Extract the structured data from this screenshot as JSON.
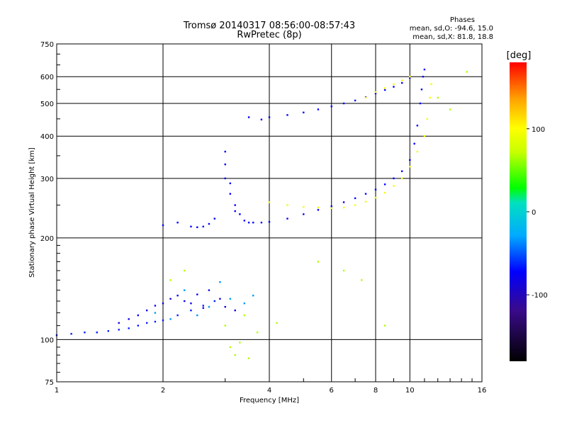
{
  "title_line1": "Tromsø 20140317 08:56:00-08:57:43",
  "title_line2": "RwPretec (8p)",
  "stats": {
    "heading": "Phases",
    "line_o": "mean, sd,O: -94.6, 15.0",
    "line_x": "mean, sd,X:  81.8, 18.8"
  },
  "colorbar": {
    "label": "[deg]",
    "range": [
      -180,
      180
    ],
    "ticks": [
      "100",
      "0",
      "-100"
    ],
    "tick_values": [
      100,
      0,
      -100
    ]
  },
  "chart_data": {
    "type": "scatter",
    "title": "Tromsø 20140317 08:56:00-08:57:43",
    "subtitle": "RwPretec (8p)",
    "xlabel": "Frequency [MHz]",
    "ylabel": "Stationary phase Virtual Height [km]",
    "x_scale": "log",
    "y_scale": "log",
    "xlim": [
      1,
      16
    ],
    "ylim": [
      75,
      750
    ],
    "xticks": [
      1,
      2,
      4,
      6,
      8,
      10,
      16
    ],
    "xtick_labels": [
      "1",
      "2",
      "4",
      "6",
      "8",
      "10",
      "16"
    ],
    "yticks": [
      75,
      100,
      200,
      300,
      400,
      500,
      600,
      750
    ],
    "ytick_labels": [
      "75",
      "100",
      "200",
      "300",
      "400",
      "500",
      "600",
      "750"
    ],
    "grid": true,
    "color_variable": "Phase [deg]",
    "series": [
      {
        "phase": -95,
        "points": [
          [
            1.0,
            103
          ],
          [
            1.1,
            104
          ],
          [
            1.2,
            105
          ],
          [
            1.3,
            105
          ],
          [
            1.4,
            106
          ],
          [
            1.5,
            107
          ],
          [
            1.6,
            108
          ],
          [
            1.7,
            110
          ],
          [
            1.8,
            112
          ],
          [
            1.9,
            113
          ],
          [
            2.0,
            114
          ],
          [
            2.2,
            118
          ],
          [
            2.4,
            122
          ],
          [
            2.6,
            126
          ],
          [
            2.8,
            130
          ]
        ]
      },
      {
        "phase": -105,
        "points": [
          [
            1.5,
            112
          ],
          [
            1.6,
            115
          ],
          [
            1.7,
            118
          ],
          [
            1.8,
            122
          ],
          [
            1.9,
            126
          ],
          [
            2.0,
            128
          ],
          [
            2.1,
            132
          ],
          [
            2.2,
            135
          ],
          [
            2.3,
            130
          ],
          [
            2.4,
            128
          ],
          [
            2.5,
            136
          ],
          [
            2.6,
            124
          ],
          [
            2.7,
            140
          ],
          [
            2.9,
            132
          ],
          [
            3.0,
            125
          ],
          [
            3.2,
            122
          ]
        ]
      },
      {
        "phase": -60,
        "points": [
          [
            1.9,
            120
          ],
          [
            2.1,
            115
          ],
          [
            2.3,
            140
          ],
          [
            2.5,
            118
          ],
          [
            2.7,
            125
          ],
          [
            2.9,
            148
          ],
          [
            3.1,
            132
          ],
          [
            3.4,
            128
          ],
          [
            3.6,
            135
          ]
        ]
      },
      {
        "phase": -100,
        "points": [
          [
            2.0,
            218
          ],
          [
            2.2,
            222
          ],
          [
            2.4,
            216
          ],
          [
            2.5,
            215
          ],
          [
            2.6,
            216
          ],
          [
            2.7,
            220
          ],
          [
            2.8,
            228
          ]
        ]
      },
      {
        "phase": -100,
        "points": [
          [
            3.0,
            300
          ],
          [
            3.0,
            330
          ],
          [
            3.0,
            360
          ],
          [
            3.1,
            290
          ],
          [
            3.1,
            270
          ],
          [
            3.2,
            250
          ],
          [
            3.2,
            240
          ],
          [
            3.3,
            235
          ],
          [
            3.4,
            225
          ],
          [
            3.5,
            222
          ],
          [
            3.6,
            222
          ],
          [
            3.8,
            222
          ],
          [
            4.0,
            223
          ],
          [
            4.5,
            228
          ],
          [
            5.0,
            235
          ],
          [
            5.5,
            242
          ],
          [
            6.0,
            248
          ],
          [
            6.5,
            255
          ],
          [
            7.0,
            262
          ],
          [
            7.5,
            270
          ],
          [
            8.0,
            278
          ],
          [
            8.5,
            288
          ],
          [
            9.0,
            300
          ],
          [
            9.5,
            315
          ],
          [
            10.0,
            340
          ],
          [
            10.3,
            380
          ],
          [
            10.5,
            430
          ],
          [
            10.7,
            500
          ],
          [
            10.8,
            550
          ],
          [
            10.9,
            600
          ],
          [
            11.0,
            630
          ]
        ]
      },
      {
        "phase": 85,
        "points": [
          [
            4.0,
            255
          ],
          [
            4.5,
            250
          ],
          [
            5.0,
            247
          ],
          [
            5.5,
            246
          ],
          [
            6.0,
            245
          ],
          [
            6.5,
            246
          ],
          [
            7.0,
            250
          ],
          [
            7.5,
            256
          ],
          [
            8.0,
            263
          ],
          [
            8.5,
            272
          ],
          [
            9.0,
            285
          ],
          [
            9.5,
            300
          ],
          [
            10.0,
            325
          ],
          [
            10.5,
            360
          ],
          [
            11.0,
            400
          ],
          [
            11.2,
            450
          ],
          [
            11.4,
            520
          ],
          [
            11.5,
            570
          ]
        ]
      },
      {
        "phase": -100,
        "points": [
          [
            3.5,
            455
          ],
          [
            3.8,
            448
          ],
          [
            4.0,
            455
          ],
          [
            4.5,
            462
          ],
          [
            5.0,
            470
          ],
          [
            5.5,
            480
          ],
          [
            6.0,
            490
          ],
          [
            6.5,
            500
          ],
          [
            7.0,
            510
          ],
          [
            7.5,
            522
          ],
          [
            8.0,
            535
          ],
          [
            8.5,
            548
          ],
          [
            9.0,
            560
          ],
          [
            9.5,
            575
          ],
          [
            10.0,
            595
          ]
        ]
      },
      {
        "phase": 90,
        "points": [
          [
            7.5,
            520
          ],
          [
            8.0,
            540
          ],
          [
            8.5,
            555
          ],
          [
            9.0,
            570
          ],
          [
            9.5,
            585
          ],
          [
            10.0,
            600
          ]
        ]
      },
      {
        "phase": 60,
        "points": [
          [
            3.1,
            95
          ],
          [
            3.2,
            90
          ],
          [
            3.3,
            98
          ],
          [
            3.5,
            88
          ],
          [
            2.1,
            150
          ],
          [
            2.3,
            160
          ],
          [
            3.0,
            110
          ],
          [
            3.4,
            118
          ],
          [
            3.7,
            105
          ],
          [
            4.2,
            112
          ],
          [
            5.5,
            170
          ],
          [
            6.5,
            160
          ],
          [
            7.3,
            150
          ],
          [
            8.5,
            110
          ],
          [
            12.0,
            520
          ],
          [
            13.0,
            480
          ],
          [
            14.5,
            620
          ]
        ]
      }
    ]
  }
}
